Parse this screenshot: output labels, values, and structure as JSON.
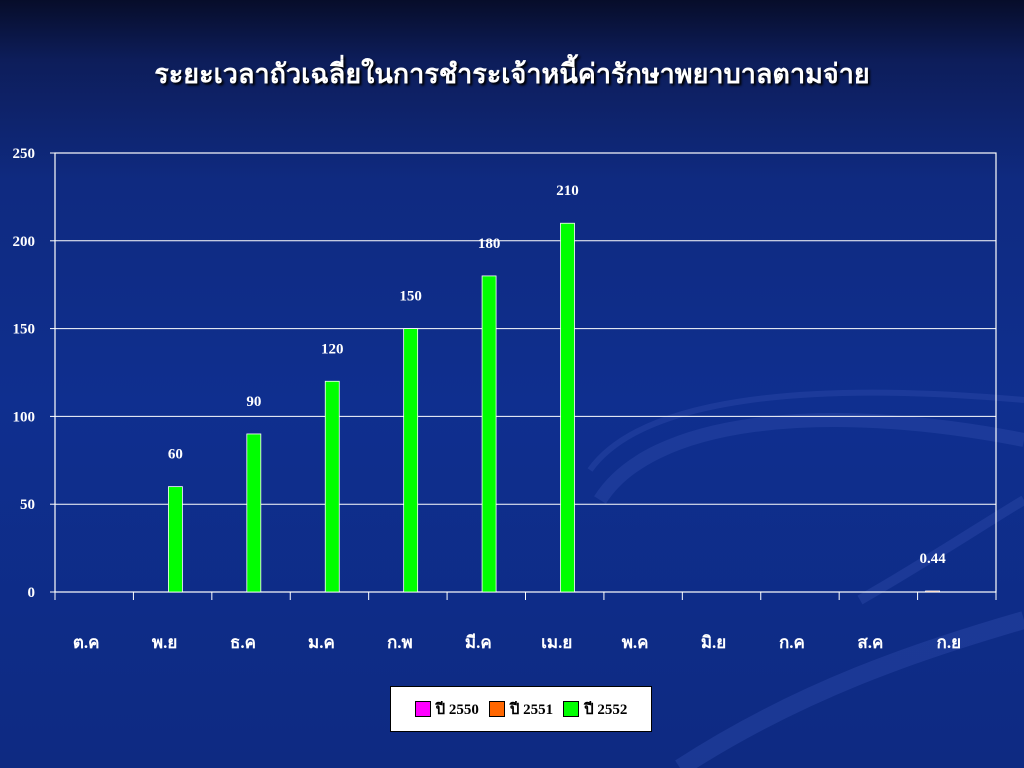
{
  "slide": {
    "title": "ระยะเวลาถัวเฉลี่ยในการชำระเจ้าหนี้ค่ารักษาพยาบาลตามจ่าย"
  },
  "colors": {
    "background": "#0f2f8f",
    "grid": "#ffffff",
    "series_2550": "#ff00ff",
    "series_2551": "#ff6600",
    "series_2552": "#00ff00"
  },
  "chart_data": {
    "type": "bar",
    "title": "",
    "xlabel": "",
    "ylabel": "",
    "ylim": [
      0,
      250
    ],
    "yticks": [
      0,
      50,
      100,
      150,
      200,
      250
    ],
    "grid": true,
    "legend_position": "bottom",
    "categories": [
      "ต.ค",
      "พ.ย",
      "ธ.ค",
      "ม.ค",
      "ก.พ",
      "มี.ค",
      "เม.ย",
      "พ.ค",
      "มิ.ย",
      "ก.ค",
      "ส.ค",
      "ก.ย"
    ],
    "series": [
      {
        "name": "ปี 2550",
        "color": "#ff00ff",
        "values": [
          null,
          null,
          null,
          null,
          null,
          null,
          null,
          null,
          null,
          null,
          null,
          null
        ]
      },
      {
        "name": "ปี 2551",
        "color": "#ff6600",
        "values": [
          null,
          null,
          null,
          null,
          null,
          null,
          null,
          null,
          null,
          null,
          null,
          0.44
        ]
      },
      {
        "name": "ปี 2552",
        "color": "#00ff00",
        "values": [
          null,
          60,
          90,
          120,
          150,
          180,
          210,
          null,
          null,
          null,
          null,
          null
        ]
      }
    ],
    "data_labels": [
      {
        "category": "พ.ย",
        "text": "60"
      },
      {
        "category": "ธ.ค",
        "text": "90"
      },
      {
        "category": "ม.ค",
        "text": "120"
      },
      {
        "category": "ก.พ",
        "text": "150"
      },
      {
        "category": "มี.ค",
        "text": "180"
      },
      {
        "category": "เม.ย",
        "text": "210"
      },
      {
        "category": "ก.ย",
        "text": "0.44"
      }
    ]
  }
}
